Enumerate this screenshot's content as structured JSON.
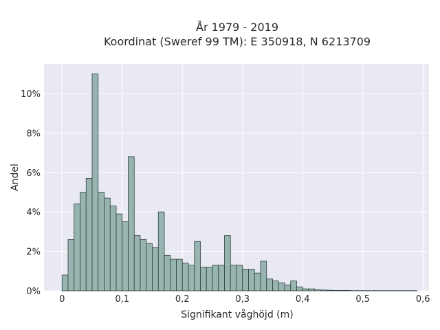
{
  "chart_data": {
    "type": "bar",
    "title_line1": "År 1979 - 2019",
    "title_line2": "Koordinat (Sweref 99 TM): E 350918, N 6213709",
    "xlabel": "Signifikant våghöjd (m)",
    "ylabel": "Andel",
    "xlim": [
      -0.03,
      0.61
    ],
    "ylim": [
      0,
      0.115
    ],
    "x_ticks": [
      0,
      0.1,
      0.2,
      0.3,
      0.4,
      0.5,
      0.6
    ],
    "x_tick_labels": [
      "0",
      "0,1",
      "0,2",
      "0,3",
      "0,4",
      "0,5",
      "0,6"
    ],
    "y_ticks": [
      0,
      0.02,
      0.04,
      0.06,
      0.08,
      0.1
    ],
    "y_tick_labels": [
      "0%",
      "2%",
      "4%",
      "6%",
      "8%",
      "10%"
    ],
    "grid": true,
    "bin_width": 0.01,
    "bin_starts": [
      0.0,
      0.01,
      0.02,
      0.03,
      0.04,
      0.05,
      0.06,
      0.07,
      0.08,
      0.09,
      0.1,
      0.11,
      0.12,
      0.13,
      0.14,
      0.15,
      0.16,
      0.17,
      0.18,
      0.19,
      0.2,
      0.21,
      0.22,
      0.23,
      0.24,
      0.25,
      0.26,
      0.27,
      0.28,
      0.29,
      0.3,
      0.31,
      0.32,
      0.33,
      0.34,
      0.35,
      0.36,
      0.37,
      0.38,
      0.39,
      0.4,
      0.41,
      0.42,
      0.43,
      0.44,
      0.45,
      0.46,
      0.47,
      0.48,
      0.49,
      0.5,
      0.51,
      0.52,
      0.53,
      0.54,
      0.55,
      0.56,
      0.57,
      0.58
    ],
    "values": [
      0.008,
      0.026,
      0.044,
      0.05,
      0.057,
      0.11,
      0.05,
      0.047,
      0.043,
      0.039,
      0.035,
      0.068,
      0.028,
      0.026,
      0.024,
      0.022,
      0.04,
      0.018,
      0.016,
      0.016,
      0.014,
      0.013,
      0.025,
      0.012,
      0.012,
      0.013,
      0.013,
      0.028,
      0.013,
      0.013,
      0.011,
      0.011,
      0.009,
      0.015,
      0.006,
      0.005,
      0.004,
      0.003,
      0.005,
      0.002,
      0.001,
      0.001,
      0.0005,
      0.0004,
      0.0003,
      0.0002,
      0.0002,
      0.0002,
      0.0001,
      0.0001,
      0.0001,
      0.0001,
      0.0001,
      0.0001,
      0.0001,
      0.0001,
      0.0001,
      0.0001,
      0.0001
    ],
    "colors": {
      "bar_fill": "#97b4b0",
      "bar_stroke": "#2f3f3d",
      "plot_bg": "#e9e9f2",
      "grid": "#ffffff"
    }
  }
}
